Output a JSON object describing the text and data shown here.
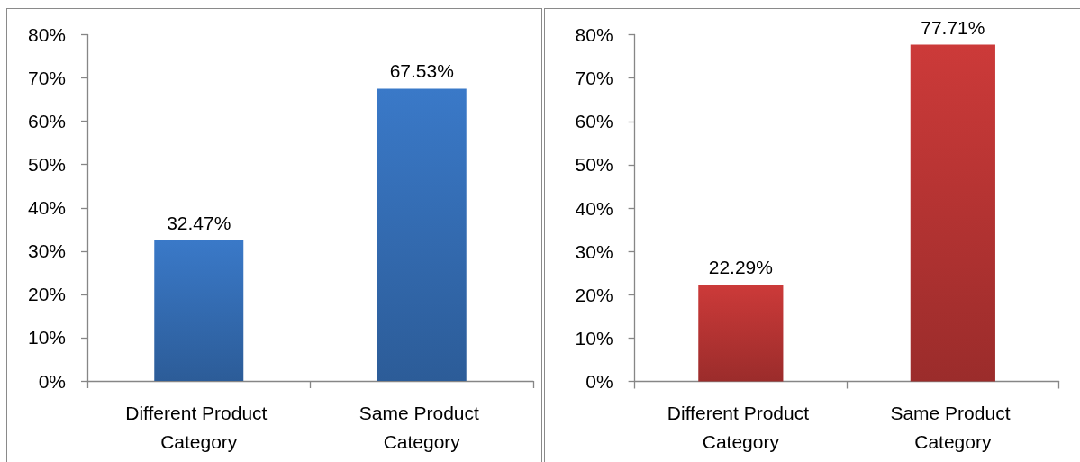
{
  "chart_data": [
    {
      "type": "bar",
      "categories": [
        "Different Product Category",
        "Same Product Category"
      ],
      "values": [
        32.47,
        67.53
      ],
      "value_labels": [
        "32.47%",
        "67.53%"
      ],
      "color": "#346cb3",
      "ylim": [
        0,
        80
      ],
      "yticks": [
        {
          "value": 0,
          "label": "0%"
        },
        {
          "value": 10,
          "label": "10%"
        },
        {
          "value": 20,
          "label": "20%"
        },
        {
          "value": 30,
          "label": "30%"
        },
        {
          "value": 40,
          "label": "40%"
        },
        {
          "value": 50,
          "label": "50%"
        },
        {
          "value": 60,
          "label": "60%"
        },
        {
          "value": 70,
          "label": "70%"
        },
        {
          "value": 80,
          "label": "80%"
        }
      ],
      "grid": false
    },
    {
      "type": "bar",
      "categories": [
        "Different Product Category",
        "Same Product Category"
      ],
      "values": [
        22.29,
        77.71
      ],
      "value_labels": [
        "22.29%",
        "77.71%"
      ],
      "color": "#b63433",
      "ylim": [
        0,
        80
      ],
      "yticks": [
        {
          "value": 0,
          "label": "0%"
        },
        {
          "value": 10,
          "label": "10%"
        },
        {
          "value": 20,
          "label": "20%"
        },
        {
          "value": 30,
          "label": "30%"
        },
        {
          "value": 40,
          "label": "40%"
        },
        {
          "value": 50,
          "label": "50%"
        },
        {
          "value": 60,
          "label": "60%"
        },
        {
          "value": 70,
          "label": "70%"
        },
        {
          "value": 80,
          "label": "80%"
        }
      ],
      "grid": false
    }
  ]
}
